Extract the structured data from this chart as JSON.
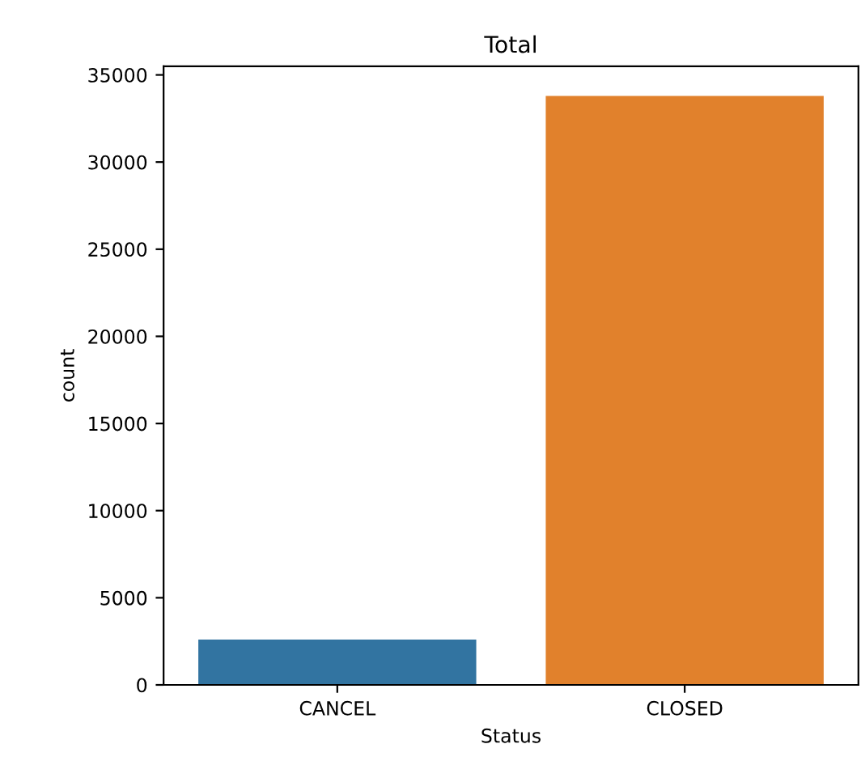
{
  "chart_data": {
    "type": "bar",
    "title": "Total",
    "xlabel": "Status",
    "ylabel": "count",
    "categories": [
      "CANCEL",
      "CLOSED"
    ],
    "values": [
      2600,
      33800
    ],
    "colors": [
      "#3274a1",
      "#e1812c"
    ],
    "ylim": [
      0,
      35500
    ],
    "yticks": [
      0,
      5000,
      10000,
      15000,
      20000,
      25000,
      30000,
      35000
    ]
  }
}
